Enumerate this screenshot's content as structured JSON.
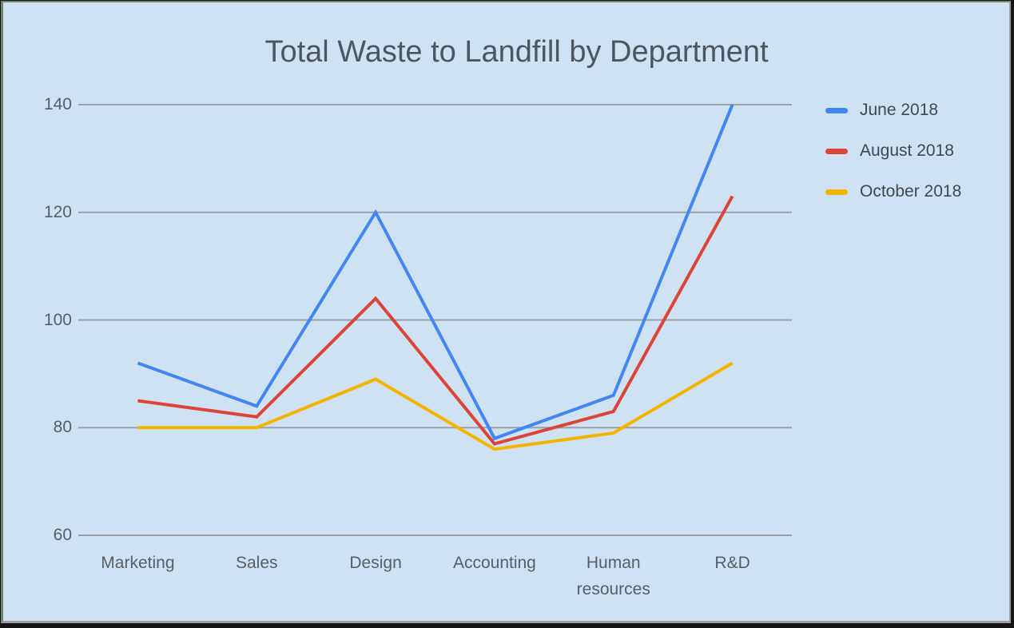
{
  "theme": {
    "surface_background": "#CFE2F3",
    "gridline_color": "#9AA0A6",
    "title_color": "#4D565E",
    "axis_label_color": "#575F66",
    "legend_text_color": "#40474D"
  },
  "legend": {
    "position": "right",
    "items": [
      "June 2018",
      "August 2018",
      "October 2018"
    ]
  },
  "chart_data": {
    "type": "line",
    "title": "Total Waste to Landfill by Department",
    "categories": [
      "Marketing",
      "Sales",
      "Design",
      "Accounting",
      "Human resources",
      "R&D"
    ],
    "series": [
      {
        "name": "June 2018",
        "color": "#4285F4",
        "values": [
          92,
          84,
          120,
          78,
          86,
          140
        ]
      },
      {
        "name": "August 2018",
        "color": "#DB4437",
        "values": [
          85,
          82,
          104,
          77,
          83,
          123
        ]
      },
      {
        "name": "October 2018",
        "color": "#F4B400",
        "values": [
          80,
          80,
          89,
          76,
          79,
          92
        ]
      }
    ],
    "xlabel": "",
    "ylabel": "",
    "ylim": [
      60,
      140
    ],
    "yticks": [
      60,
      80,
      100,
      120,
      140
    ],
    "grid": true,
    "legend_position": "right"
  }
}
